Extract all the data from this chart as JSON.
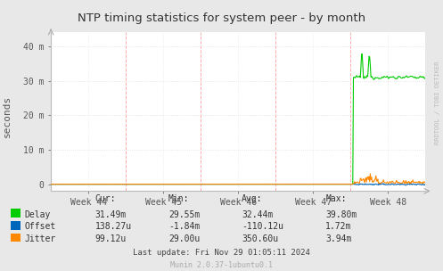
{
  "title": "NTP timing statistics for system peer - by month",
  "ylabel": "seconds",
  "bg_color": "#e8e8e8",
  "plot_bg_color": "#ffffff",
  "grid_color_h": "#dddddd",
  "grid_color_v": "#ffaaaa",
  "x_tick_labels": [
    "Week 44",
    "Week 45",
    "Week 46",
    "Week 47",
    "Week 48"
  ],
  "y_tick_labels": [
    "0",
    "10 m",
    "20 m",
    "30 m",
    "40 m"
  ],
  "y_ticks": [
    0.0,
    0.01,
    0.02,
    0.03,
    0.04
  ],
  "ylim": [
    -0.002,
    0.044
  ],
  "xlim": [
    0.0,
    1.0
  ],
  "watermark": "RRDTOOL / TOBI OETIKER",
  "footer": "Munin 2.0.37-1ubuntu0.1",
  "last_update": "Last update: Fri Nov 29 01:05:11 2024",
  "delay_color": "#00cc00",
  "offset_color": "#0066bb",
  "jitter_color": "#ff8800",
  "legend_labels": [
    "Delay",
    "Offset",
    "Jitter"
  ],
  "legend_colors": [
    "#00cc00",
    "#0066bb",
    "#ff8800"
  ],
  "stats_headers": [
    "Cur:",
    "Min:",
    "Avg:",
    "Max:"
  ],
  "stats_rows": [
    [
      "Delay",
      "31.49m",
      "29.55m",
      "32.44m",
      "39.80m"
    ],
    [
      "Offset",
      "138.27u",
      "-1.84m",
      "-110.12u",
      "1.72m"
    ],
    [
      "Jitter",
      "99.12u",
      "29.00u",
      "350.60u",
      "3.94m"
    ]
  ]
}
